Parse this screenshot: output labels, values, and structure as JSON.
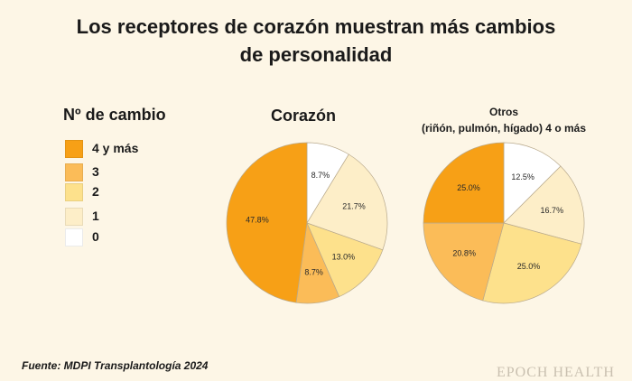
{
  "title_line1": "Los receptores de corazón muestran más cambios",
  "title_line2": "de personalidad",
  "legend": {
    "title": "Nº de cambio",
    "items": [
      {
        "label": "4 y más",
        "color": "#f7a016"
      },
      {
        "label": "3",
        "color": "#fbbc58"
      },
      {
        "label": "2",
        "color": "#fde18c"
      },
      {
        "label": "1",
        "color": "#fdeec8"
      },
      {
        "label": "0",
        "color": "#ffffff"
      }
    ]
  },
  "chart_data": [
    {
      "type": "pie",
      "title": "Corazón",
      "slices": [
        {
          "category": "0",
          "value": 8.7,
          "label": "8.7%"
        },
        {
          "category": "1",
          "value": 21.7,
          "label": "21.7%"
        },
        {
          "category": "2",
          "value": 13.0,
          "label": "13.0%"
        },
        {
          "category": "3",
          "value": 8.7,
          "label": "8.7%"
        },
        {
          "category": "4 y más",
          "value": 47.8,
          "label": "47.8%"
        }
      ]
    },
    {
      "type": "pie",
      "title_line1": "Otros",
      "title_line2": "(riñón, pulmón, hígado) 4 o más",
      "slices": [
        {
          "category": "0",
          "value": 12.5,
          "label": "12.5%"
        },
        {
          "category": "1",
          "value": 16.7,
          "label": "16.7%"
        },
        {
          "category": "2",
          "value": 25.0,
          "label": "25.0%"
        },
        {
          "category": "3",
          "value": 20.8,
          "label": "20.8%"
        },
        {
          "category": "4 y más",
          "value": 25.0,
          "label": "25.0%"
        }
      ]
    }
  ],
  "source": "Fuente: MDPI Transplantología 2024",
  "watermark": "EPOCH HEALTH"
}
